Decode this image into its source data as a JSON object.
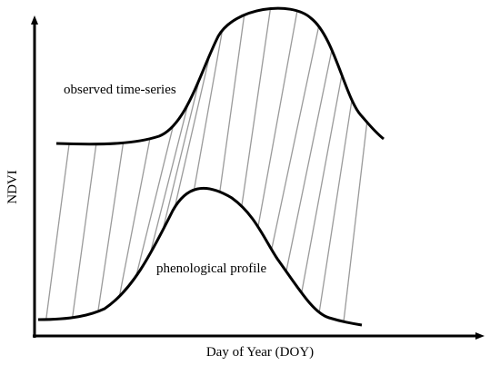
{
  "diagram": {
    "observed_label": "observed time-series",
    "profile_label": "phenological profile",
    "x_axis_label": "Day of Year (DOY)",
    "y_axis_label": "NDVI"
  },
  "colors": {
    "curve": "#000000",
    "axis": "#000000",
    "connector": "#9a9a9a"
  }
}
